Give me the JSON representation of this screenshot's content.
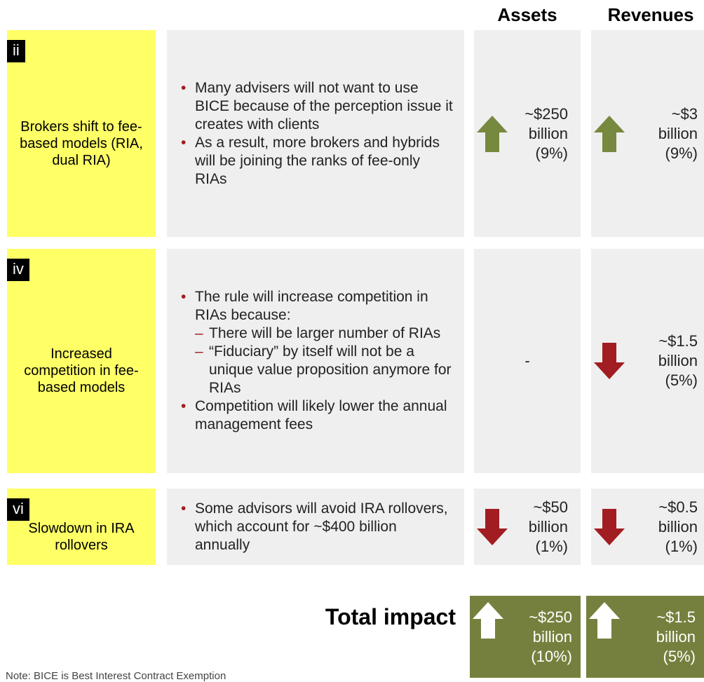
{
  "header": {
    "columns": [
      "Assets",
      "Revenues"
    ]
  },
  "rows": [
    {
      "tag": "ii",
      "title": "Brokers shift to fee-based models (RIA, dual RIA)",
      "bullets": [
        {
          "level": 1,
          "text": "Many advisers will not want to use BICE because of the perception issue it creates with clients"
        },
        {
          "level": 1,
          "text": "As a result, more brokers and hybrids will be joining the ranks of fee-only RIAs"
        }
      ],
      "assets": {
        "direction": "up",
        "lines": [
          "~$250",
          "billion",
          "(9%)"
        ]
      },
      "revenues": {
        "direction": "up",
        "lines": [
          "~$3",
          "billion",
          "(9%)"
        ]
      }
    },
    {
      "tag": "iv",
      "title": "Increased competition in fee-based models",
      "bullets": [
        {
          "level": 1,
          "text": "The rule will increase competition in RIAs because:"
        },
        {
          "level": 2,
          "text": "There will be larger number of RIAs"
        },
        {
          "level": 2,
          "text": "“Fiduciary” by itself will not be a unique value proposition anymore for RIAs"
        },
        {
          "level": 1,
          "text": "Competition will likely lower the annual management fees"
        }
      ],
      "assets": {
        "direction": null,
        "lines": [
          "-"
        ]
      },
      "revenues": {
        "direction": "down",
        "lines": [
          "~$1.5",
          "billion",
          "(5%)"
        ]
      }
    },
    {
      "tag": "vi",
      "title": "Slowdown in IRA rollovers",
      "bullets": [
        {
          "level": 1,
          "text": "Some advisors will avoid IRA rollovers, which account for ~$400 billion annually"
        }
      ],
      "assets": {
        "direction": "down",
        "lines": [
          "~$50",
          "billion",
          "(1%)"
        ]
      },
      "revenues": {
        "direction": "down",
        "lines": [
          "~$0.5",
          "billion",
          "(1%)"
        ]
      }
    }
  ],
  "total": {
    "label": "Total impact",
    "assets": {
      "direction": "up",
      "lines": [
        "~$250",
        "billion",
        "(10%)"
      ]
    },
    "revenues": {
      "direction": "up",
      "lines": [
        "~$1.5",
        "billion",
        "(5%)"
      ]
    }
  },
  "note": "Note: BICE is Best Interest Contract Exemption"
}
